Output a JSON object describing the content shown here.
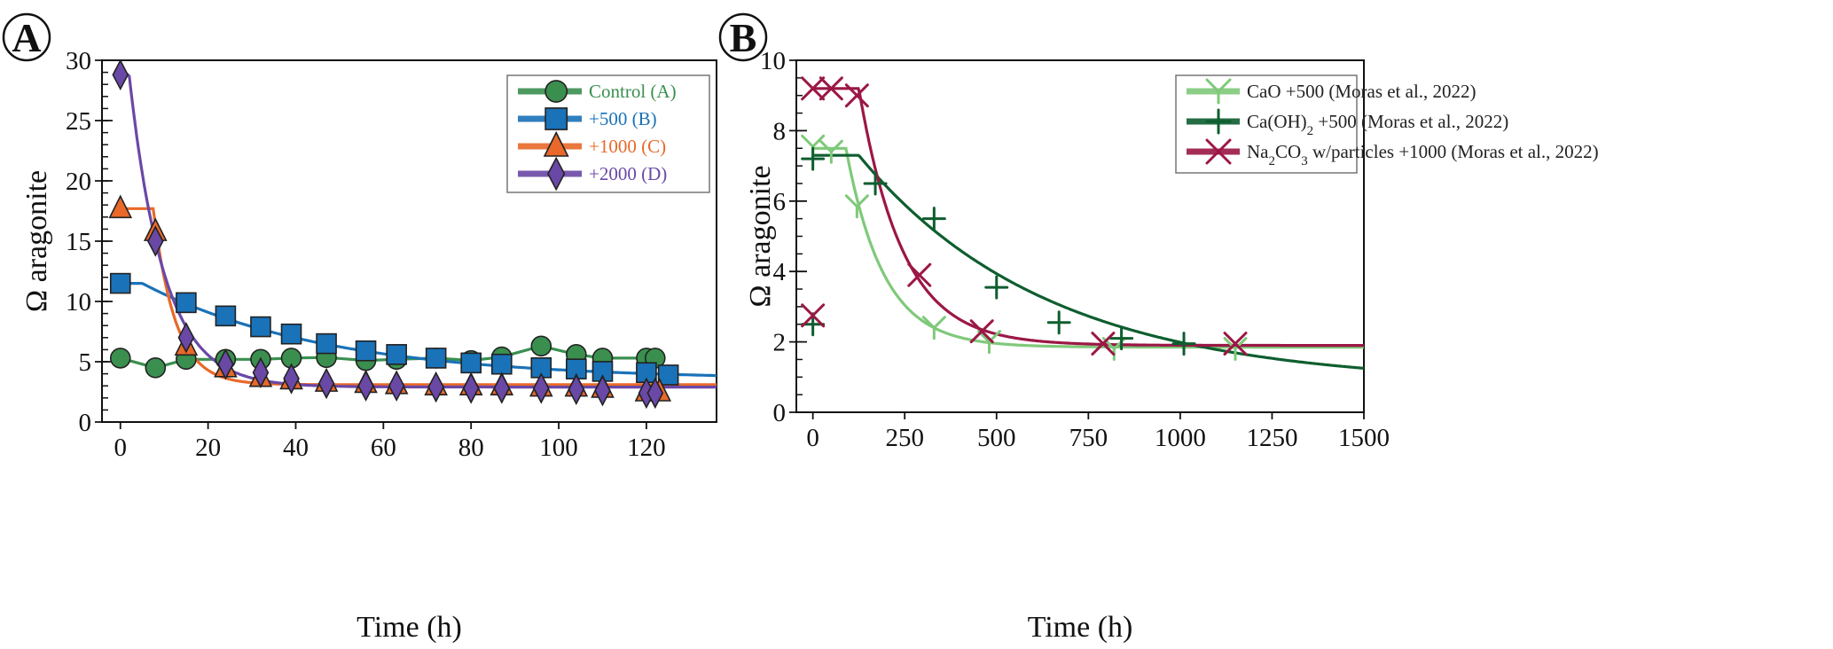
{
  "chart_data": [
    {
      "type": "line",
      "panel_label": "A",
      "xlabel": "Time (h)",
      "ylabel": "Ω aragonite",
      "xlim": [
        -4.2,
        136
      ],
      "ylim": [
        0,
        30
      ],
      "xticks": [
        0,
        20,
        40,
        60,
        80,
        100,
        120
      ],
      "yticks": [
        0,
        5,
        10,
        15,
        20,
        25,
        30
      ],
      "y_minor_step": 1,
      "legend_position": "top-right",
      "series": [
        {
          "name": "Control (A)",
          "color": "#3a8f4f",
          "marker": "circle",
          "x": [
            0,
            8,
            15,
            24,
            32,
            39,
            47,
            56,
            63,
            72,
            80,
            87,
            96,
            104,
            110,
            120,
            122
          ],
          "y": [
            5.3,
            4.5,
            5.2,
            5.2,
            5.2,
            5.3,
            5.35,
            5.1,
            5.2,
            5.3,
            5.1,
            5.4,
            6.3,
            5.6,
            5.3,
            5.3,
            5.3
          ],
          "fit": {
            "kind": "connect"
          }
        },
        {
          "name": "+500 (B)",
          "color": "#1a72b8",
          "marker": "square",
          "x": [
            0,
            15,
            24,
            32,
            39,
            47,
            56,
            63,
            72,
            80,
            87,
            96,
            104,
            110,
            120,
            125
          ],
          "y": [
            11.5,
            9.9,
            8.8,
            7.9,
            7.3,
            6.5,
            5.9,
            5.6,
            5.3,
            4.9,
            4.8,
            4.5,
            4.4,
            4.2,
            4.1,
            3.9
          ],
          "fit": {
            "kind": "plateau-exp",
            "start": 11.5,
            "t0": 5,
            "asymptote": 3.5,
            "tau": 42
          }
        },
        {
          "name": "+1000 (C)",
          "color": "#e8692a",
          "marker": "triangle",
          "x": [
            0,
            8,
            15,
            24,
            32,
            39,
            47,
            56,
            63,
            72,
            80,
            87,
            96,
            104,
            110,
            120,
            123
          ],
          "y": [
            17.7,
            15.8,
            6.3,
            4.5,
            3.7,
            3.5,
            3.3,
            3.2,
            3.1,
            3.0,
            3.0,
            3.0,
            2.9,
            2.9,
            2.8,
            2.5,
            2.5
          ],
          "fit": {
            "kind": "plateau-exp",
            "start": 17.7,
            "t0": 7.5,
            "asymptote": 3.1,
            "tau": 5
          }
        },
        {
          "name": "+2000 (D)",
          "color": "#6a48a6",
          "marker": "diamond",
          "x": [
            0,
            8,
            15,
            24,
            32,
            39,
            47,
            56,
            63,
            72,
            80,
            87,
            96,
            104,
            110,
            120,
            122
          ],
          "y": [
            28.8,
            15,
            7,
            4.8,
            4.1,
            3.6,
            3.2,
            3.0,
            3.0,
            2.9,
            2.8,
            2.8,
            2.8,
            2.7,
            2.6,
            2.4,
            2.4
          ],
          "fit": {
            "kind": "plateau-exp",
            "start": 28.8,
            "t0": 2,
            "asymptote": 2.9,
            "tau": 7.9
          }
        }
      ]
    },
    {
      "type": "line",
      "panel_label": "B",
      "xlabel": "Time (h)",
      "ylabel": "Ω aragonite",
      "xlim": [
        -45,
        1500
      ],
      "ylim": [
        0,
        10
      ],
      "xticks": [
        0,
        250,
        500,
        750,
        1000,
        1250,
        1500
      ],
      "yticks": [
        0,
        2,
        4,
        6,
        8,
        10
      ],
      "y_minor_step": 0.5,
      "legend_position": "top-right",
      "series": [
        {
          "name": "CaO +500 (Moras et al., 2022)",
          "color": "#7fc97a",
          "marker": "y",
          "x": [
            0,
            50,
            120,
            330,
            480,
            820,
            1150
          ],
          "y": [
            7.55,
            7.4,
            5.85,
            2.4,
            2.0,
            1.8,
            1.8
          ],
          "fit": {
            "kind": "plateau-exp",
            "start": 7.5,
            "t0": 90,
            "asymptote": 1.85,
            "tau": 103
          }
        },
        {
          "name": "Ca(OH)2 +500 (Moras et al., 2022)",
          "color": "#0e5e2f",
          "marker": "plus",
          "x": [
            0,
            0,
            170,
            330,
            500,
            670,
            840,
            1010
          ],
          "y": [
            7.2,
            2.5,
            6.5,
            5.5,
            3.55,
            2.55,
            2.1,
            1.95
          ],
          "fit": {
            "kind": "plateau-exp",
            "start": 7.3,
            "t0": 125,
            "asymptote": 0.8,
            "tau": 515
          }
        },
        {
          "name": "Na2CO3 w/particles +1000 (Moras et al., 2022)",
          "color": "#9b1746",
          "marker": "x",
          "x": [
            0,
            0,
            50,
            120,
            290,
            460,
            790,
            1150
          ],
          "y": [
            9.2,
            2.75,
            9.2,
            9.0,
            3.9,
            2.3,
            1.95,
            1.95
          ],
          "fit": {
            "kind": "plateau-exp",
            "start": 9.2,
            "t0": 125,
            "asymptote": 1.9,
            "tau": 120
          }
        }
      ]
    }
  ]
}
